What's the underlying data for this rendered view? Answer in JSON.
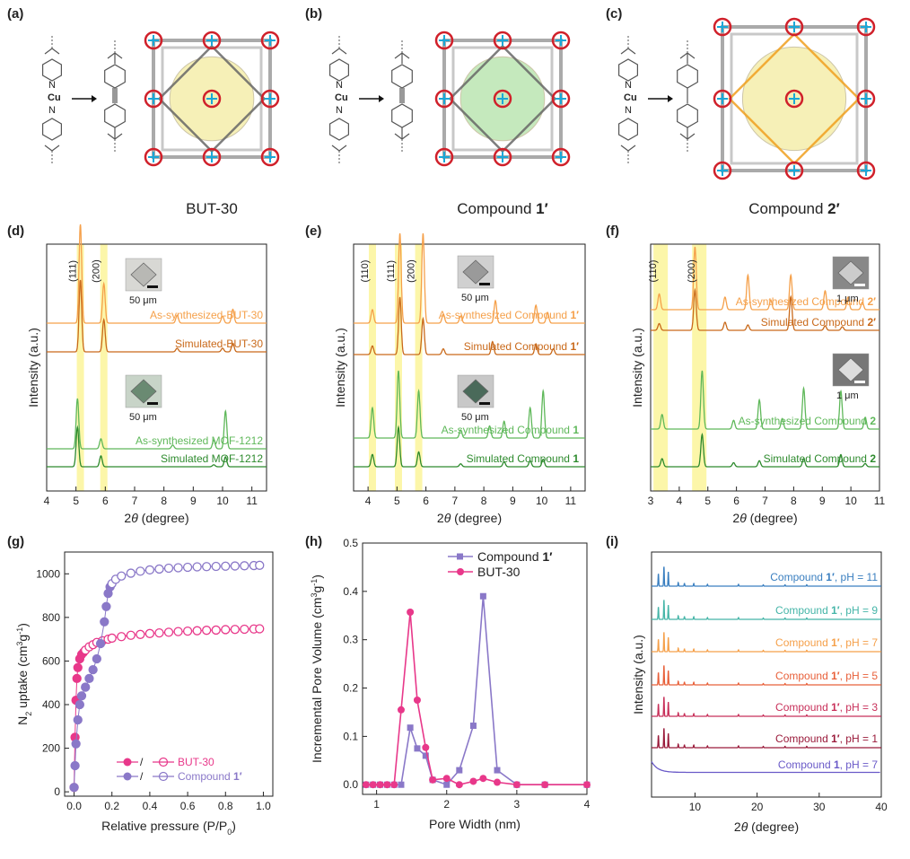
{
  "colors": {
    "orange": "#f5a04a",
    "dark_orange": "#c9691a",
    "green_light": "#5fb85a",
    "green_dark": "#2d8a2d",
    "magenta": "#e8388a",
    "purple": "#8a78c8",
    "highlight": "#fbf59a",
    "sphere_yellow": "#f6efb0",
    "sphere_green": "#bfe7b6",
    "linker_orange": "#f0a020"
  },
  "panel_labels": [
    "(a)",
    "(b)",
    "(c)",
    "(d)",
    "(e)",
    "(f)",
    "(g)",
    "(h)",
    "(i)"
  ],
  "structures": {
    "a": {
      "caption": "BUT-30",
      "metal": "Cu"
    },
    "b": {
      "caption_main": "Compound ",
      "caption_bold": "1′",
      "metal": "Cu"
    },
    "c": {
      "caption_main": "Compound ",
      "caption_bold": "2′",
      "metal": "Cu"
    }
  },
  "chart_data": [
    {
      "id": "d",
      "type": "line",
      "xlabel_pre": "2",
      "xlabel_theta": "θ",
      "xlabel_post": " (degree)",
      "ylabel": "Intensity (a.u.)",
      "xlim": [
        4,
        11.5
      ],
      "xticks": [
        4,
        5,
        6,
        7,
        8,
        9,
        10,
        11
      ],
      "highlights": [
        5.15,
        5.95
      ],
      "peak_labels": [
        "(111)",
        "(200)"
      ],
      "scale_bar": "50 μm",
      "series": [
        {
          "name": "As-synthesized-BUT-30",
          "peaks": [
            [
              5.15,
              100
            ],
            [
              5.95,
              40
            ],
            [
              8.45,
              8
            ],
            [
              10.0,
              7
            ],
            [
              10.35,
              14
            ]
          ]
        },
        {
          "name": "Simulated-BUT-30",
          "peaks": [
            [
              5.15,
              100
            ],
            [
              5.95,
              45
            ],
            [
              8.45,
              5
            ],
            [
              10.0,
              5
            ],
            [
              10.35,
              12
            ]
          ]
        },
        {
          "name": "As-synthesized MOF-1212",
          "peaks": [
            [
              5.05,
              80
            ],
            [
              5.85,
              16
            ],
            [
              8.3,
              6
            ],
            [
              9.7,
              14
            ],
            [
              10.1,
              60
            ]
          ]
        },
        {
          "name": "Simulated MOF-1212",
          "peaks": [
            [
              5.05,
              80
            ],
            [
              5.85,
              22
            ],
            [
              9.7,
              4
            ],
            [
              10.1,
              20
            ]
          ]
        }
      ]
    },
    {
      "id": "e",
      "type": "line",
      "xlabel_pre": "2",
      "xlabel_theta": "θ",
      "xlabel_post": " (degree)",
      "ylabel": "Intensity (a.u.)",
      "xlim": [
        3.5,
        11.5
      ],
      "xticks": [
        4,
        5,
        6,
        7,
        8,
        9,
        10,
        11
      ],
      "highlights": [
        4.15,
        5.05,
        5.75
      ],
      "peak_labels": [
        "(110)",
        "(111)",
        "(200)"
      ],
      "scale_bar": "50 μm",
      "series": [
        {
          "name": "As-synthesized Compound ",
          "name_bold": "1′",
          "peaks": [
            [
              4.15,
              15
            ],
            [
              5.1,
              100
            ],
            [
              5.9,
              100
            ],
            [
              6.6,
              10
            ],
            [
              7.2,
              8
            ],
            [
              8.4,
              25
            ],
            [
              9.8,
              20
            ],
            [
              10.2,
              12
            ]
          ]
        },
        {
          "name": "Simulated Compound ",
          "name_bold": "1′",
          "peaks": [
            [
              4.15,
              12
            ],
            [
              5.1,
              80
            ],
            [
              5.9,
              50
            ],
            [
              6.6,
              8
            ],
            [
              8.3,
              18
            ],
            [
              9.8,
              15
            ],
            [
              10.4,
              8
            ]
          ]
        },
        {
          "name": "As-synthesized Compound ",
          "name_bold": "1",
          "peaks": [
            [
              4.15,
              45
            ],
            [
              5.05,
              100
            ],
            [
              5.75,
              70
            ],
            [
              7.2,
              12
            ],
            [
              8.2,
              18
            ],
            [
              8.7,
              25
            ],
            [
              9.6,
              45
            ],
            [
              10.05,
              70
            ]
          ]
        },
        {
          "name": "Simulated Compound ",
          "name_bold": "1",
          "peaks": [
            [
              4.15,
              25
            ],
            [
              5.05,
              80
            ],
            [
              5.75,
              30
            ],
            [
              7.2,
              6
            ],
            [
              8.7,
              10
            ],
            [
              9.6,
              12
            ],
            [
              10.05,
              15
            ]
          ]
        }
      ]
    },
    {
      "id": "f",
      "type": "line",
      "xlabel_pre": "2",
      "xlabel_theta": "θ",
      "xlabel_post": " (degree)",
      "ylabel": "Intensity (a.u.)",
      "xlim": [
        3,
        11
      ],
      "xticks": [
        3,
        4,
        5,
        6,
        7,
        8,
        9,
        10,
        11
      ],
      "highlights": [
        3.35,
        4.7
      ],
      "peak_labels": [
        "(110)",
        "(200)"
      ],
      "scale_bar": "1 μm",
      "series": [
        {
          "name": "As-synthesized Compound ",
          "name_bold": "2′",
          "peaks": [
            [
              3.3,
              25
            ],
            [
              4.55,
              100
            ],
            [
              5.6,
              20
            ],
            [
              6.4,
              55
            ],
            [
              7.2,
              15
            ],
            [
              7.9,
              55
            ],
            [
              9.1,
              30
            ],
            [
              9.9,
              20
            ],
            [
              10.4,
              12
            ]
          ]
        },
        {
          "name": "Simulated Compound ",
          "name_bold": "2′",
          "peaks": [
            [
              3.3,
              15
            ],
            [
              4.55,
              90
            ],
            [
              5.6,
              18
            ],
            [
              6.4,
              12
            ],
            [
              7.9,
              75
            ],
            [
              9.1,
              10
            ],
            [
              9.7,
              8
            ]
          ]
        },
        {
          "name": "As-synthesized Compound ",
          "name_bold": "2",
          "peaks": [
            [
              3.4,
              25
            ],
            [
              4.8,
              100
            ],
            [
              5.9,
              15
            ],
            [
              6.8,
              50
            ],
            [
              7.6,
              18
            ],
            [
              8.35,
              70
            ],
            [
              9.65,
              65
            ],
            [
              10.5,
              20
            ]
          ]
        },
        {
          "name": "Simulated Compound ",
          "name_bold": "2",
          "peaks": [
            [
              3.4,
              20
            ],
            [
              4.8,
              80
            ],
            [
              5.9,
              10
            ],
            [
              6.8,
              15
            ],
            [
              8.35,
              20
            ],
            [
              9.65,
              30
            ],
            [
              10.5,
              8
            ]
          ]
        }
      ]
    },
    {
      "id": "g",
      "type": "scatter",
      "xlabel": "Relative pressure (P/P",
      "xlabel_sub": "0",
      "xlabel_end": ")",
      "ylabel_pre": "N",
      "ylabel_sub": "2",
      "ylabel_mid": " uptake (cm",
      "ylabel_sup": "3",
      "ylabel_mid2": "g",
      "ylabel_sup2": "-1",
      "ylabel_end": ")",
      "xlim": [
        -0.05,
        1.05
      ],
      "ylim": [
        -20,
        1100
      ],
      "xticks": [
        "0.0",
        "0.2",
        "0.4",
        "0.6",
        "0.8",
        "1.0"
      ],
      "yticks": [
        0,
        200,
        400,
        600,
        800,
        1000
      ],
      "legend": [
        {
          "slash": " / ",
          "name": "BUT-30"
        },
        {
          "slash": " / ",
          "name": "Compound ",
          "name_bold": "1′"
        }
      ],
      "series": [
        {
          "name": "BUT-30",
          "x": [
            0.0,
            0.005,
            0.01,
            0.015,
            0.02,
            0.03,
            0.04,
            0.05,
            0.06,
            0.08,
            0.1,
            0.12,
            0.15,
            0.18,
            0.2,
            0.25,
            0.3,
            0.35,
            0.4,
            0.45,
            0.5,
            0.55,
            0.6,
            0.65,
            0.7,
            0.75,
            0.8,
            0.85,
            0.9,
            0.95,
            0.98
          ],
          "y": [
            20,
            250,
            420,
            520,
            570,
            610,
            630,
            640,
            650,
            665,
            675,
            685,
            693,
            700,
            705,
            712,
            718,
            722,
            726,
            729,
            732,
            735,
            737,
            739,
            741,
            742,
            744,
            745,
            746,
            747,
            748
          ]
        },
        {
          "name": "Compound 1′",
          "x": [
            0.0,
            0.005,
            0.01,
            0.02,
            0.03,
            0.04,
            0.06,
            0.08,
            0.1,
            0.12,
            0.14,
            0.16,
            0.17,
            0.18,
            0.19,
            0.2,
            0.22,
            0.25,
            0.3,
            0.35,
            0.4,
            0.45,
            0.5,
            0.55,
            0.6,
            0.65,
            0.7,
            0.75,
            0.8,
            0.85,
            0.9,
            0.95,
            0.98
          ],
          "y": [
            20,
            120,
            220,
            330,
            400,
            440,
            480,
            520,
            560,
            610,
            680,
            780,
            850,
            910,
            940,
            955,
            975,
            990,
            1003,
            1012,
            1018,
            1022,
            1026,
            1028,
            1030,
            1032,
            1033,
            1034,
            1035,
            1036,
            1037,
            1038,
            1039
          ]
        }
      ]
    },
    {
      "id": "h",
      "type": "line",
      "xlabel": "Pore Width (nm)",
      "ylabel_pre": "Incremental Pore Volume (cm",
      "ylabel_sup": "3",
      "ylabel_mid": "g",
      "ylabel_sup2": "-1",
      "ylabel_end": ")",
      "xlim": [
        0.8,
        4
      ],
      "ylim": [
        -0.02,
        0.5
      ],
      "xticks": [
        1,
        2,
        3,
        4
      ],
      "yticks": [
        "0.0",
        "0.1",
        "0.2",
        "0.3",
        "0.4",
        "0.5"
      ],
      "legend": [
        {
          "name": "Compound ",
          "name_bold": "1′"
        },
        {
          "name": "BUT-30"
        }
      ],
      "series": [
        {
          "name": "Compound 1′",
          "x": [
            0.85,
            0.95,
            1.05,
            1.15,
            1.25,
            1.35,
            1.48,
            1.58,
            1.7,
            1.8,
            2.0,
            2.18,
            2.38,
            2.52,
            2.72,
            3.0,
            3.4,
            4.0
          ],
          "y": [
            0,
            0,
            0,
            0,
            0,
            0,
            0.118,
            0.075,
            0.06,
            0.01,
            0,
            0.03,
            0.122,
            0.39,
            0.03,
            0,
            0,
            0
          ]
        },
        {
          "name": "BUT-30",
          "x": [
            0.85,
            0.95,
            1.05,
            1.15,
            1.25,
            1.35,
            1.48,
            1.58,
            1.7,
            1.8,
            2.0,
            2.18,
            2.38,
            2.52,
            2.72,
            3.0,
            3.4,
            4.0
          ],
          "y": [
            0,
            0,
            0,
            0,
            0,
            0.155,
            0.357,
            0.175,
            0.077,
            0.01,
            0.013,
            0,
            0.007,
            0.013,
            0.005,
            0,
            0,
            0
          ]
        }
      ]
    },
    {
      "id": "i",
      "type": "line",
      "xlabel_pre": "2",
      "xlabel_theta": "θ",
      "xlabel_post": " (degree)",
      "ylabel": "Intensity (a.u.)",
      "xlim": [
        3,
        40
      ],
      "xticks": [
        10,
        20,
        30,
        40
      ],
      "series": [
        {
          "name": "Compound ",
          "name_bold": "1′",
          "suffix": ", pH = 11",
          "color": "#3a7fc0"
        },
        {
          "name": "Compound ",
          "name_bold": "1′",
          "suffix": ", pH = 9",
          "color": "#45b5a8"
        },
        {
          "name": "Compound ",
          "name_bold": "1′",
          "suffix": ", pH = 7",
          "color": "#f5a04a"
        },
        {
          "name": "Compound ",
          "name_bold": "1′",
          "suffix": ", pH = 5",
          "color": "#e8603a"
        },
        {
          "name": "Compound ",
          "name_bold": "1′",
          "suffix": ", pH = 3",
          "color": "#c8305a"
        },
        {
          "name": "Compound ",
          "name_bold": "1′",
          "suffix": ", pH = 1",
          "color": "#9a1a3a"
        },
        {
          "name": "Compound ",
          "name_bold": "1",
          "suffix": ", pH = 7",
          "color": "#6a5ac8"
        }
      ]
    }
  ]
}
